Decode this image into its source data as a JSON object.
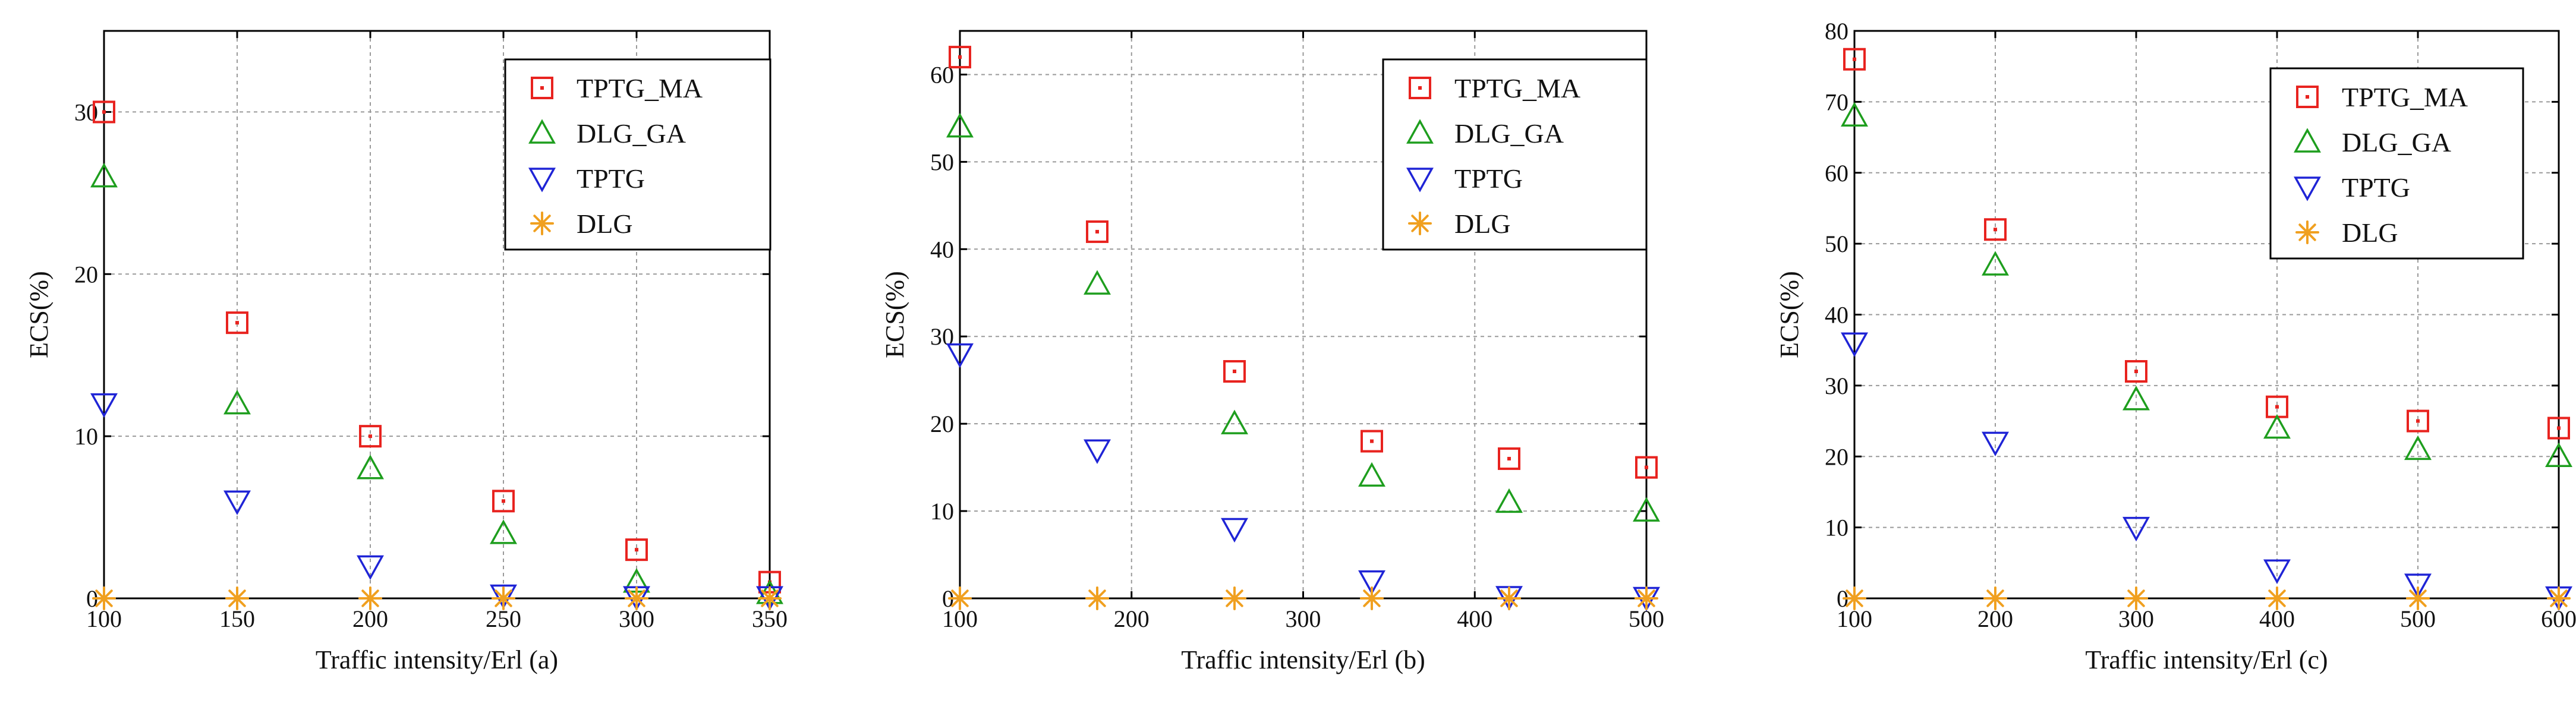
{
  "chart_data": [
    {
      "type": "scatter",
      "panel": "a",
      "xlabel": "Traffic intensity/Erl (a)",
      "ylabel": "ECS(%)",
      "xlim": [
        100,
        350
      ],
      "ylim": [
        0,
        35
      ],
      "xticks": [
        100,
        150,
        200,
        250,
        300,
        350
      ],
      "yticks": [
        0,
        10,
        20,
        30
      ],
      "x": [
        100,
        150,
        200,
        250,
        300,
        350
      ],
      "legend_position": "top-right",
      "grid": true,
      "series": [
        {
          "name": "TPTG_MA",
          "marker": "square-dot",
          "color": "#e8231f",
          "values": [
            30,
            17,
            10,
            6,
            3,
            1
          ]
        },
        {
          "name": "DLG_GA",
          "marker": "triangle-up",
          "color": "#1e9e1e",
          "values": [
            26,
            12,
            8,
            4,
            1,
            0.3
          ]
        },
        {
          "name": "TPTG",
          "marker": "triangle-down",
          "color": "#1f24d6",
          "values": [
            12,
            6,
            2,
            0.2,
            0.1,
            0.1
          ]
        },
        {
          "name": "DLG",
          "marker": "asterisk",
          "color": "#f0a020",
          "values": [
            0,
            0,
            0,
            0,
            0,
            0
          ]
        }
      ]
    },
    {
      "type": "scatter",
      "panel": "b",
      "xlabel": "Traffic intensity/Erl (b)",
      "ylabel": "ECS(%)",
      "xlim": [
        100,
        500
      ],
      "ylim": [
        0,
        65
      ],
      "xticks": [
        100,
        200,
        300,
        400,
        500
      ],
      "yticks": [
        0,
        10,
        20,
        30,
        40,
        50,
        60
      ],
      "x": [
        100,
        180,
        260,
        340,
        420,
        500
      ],
      "legend_position": "top-right",
      "grid": true,
      "series": [
        {
          "name": "TPTG_MA",
          "marker": "square-dot",
          "color": "#e8231f",
          "values": [
            62,
            42,
            26,
            18,
            16,
            15
          ]
        },
        {
          "name": "DLG_GA",
          "marker": "triangle-up",
          "color": "#1e9e1e",
          "values": [
            54,
            36,
            20,
            14,
            11,
            10
          ]
        },
        {
          "name": "TPTG",
          "marker": "triangle-down",
          "color": "#1f24d6",
          "values": [
            28,
            17,
            8,
            2,
            0.2,
            0.1
          ]
        },
        {
          "name": "DLG",
          "marker": "asterisk",
          "color": "#f0a020",
          "values": [
            0,
            0,
            0,
            0,
            0,
            0
          ]
        }
      ]
    },
    {
      "type": "scatter",
      "panel": "c",
      "xlabel": "Traffic intensity/Erl (c)",
      "ylabel": "ECS(%)",
      "xlim": [
        100,
        600
      ],
      "ylim": [
        0,
        80
      ],
      "xticks": [
        100,
        200,
        300,
        400,
        500,
        600
      ],
      "yticks": [
        0,
        10,
        20,
        30,
        40,
        50,
        60,
        70,
        80
      ],
      "x": [
        100,
        200,
        300,
        400,
        500,
        600
      ],
      "legend_position": "top-right",
      "grid": true,
      "series": [
        {
          "name": "TPTG_MA",
          "marker": "square-dot",
          "color": "#e8231f",
          "values": [
            76,
            52,
            32,
            27,
            25,
            24
          ]
        },
        {
          "name": "DLG_GA",
          "marker": "triangle-up",
          "color": "#1e9e1e",
          "values": [
            68,
            47,
            28,
            24,
            21,
            20
          ]
        },
        {
          "name": "TPTG",
          "marker": "triangle-down",
          "color": "#1f24d6",
          "values": [
            36,
            22,
            10,
            4,
            2,
            0.2
          ]
        },
        {
          "name": "DLG",
          "marker": "asterisk",
          "color": "#f0a020",
          "values": [
            0,
            0,
            0,
            0,
            0,
            0
          ]
        }
      ]
    }
  ]
}
